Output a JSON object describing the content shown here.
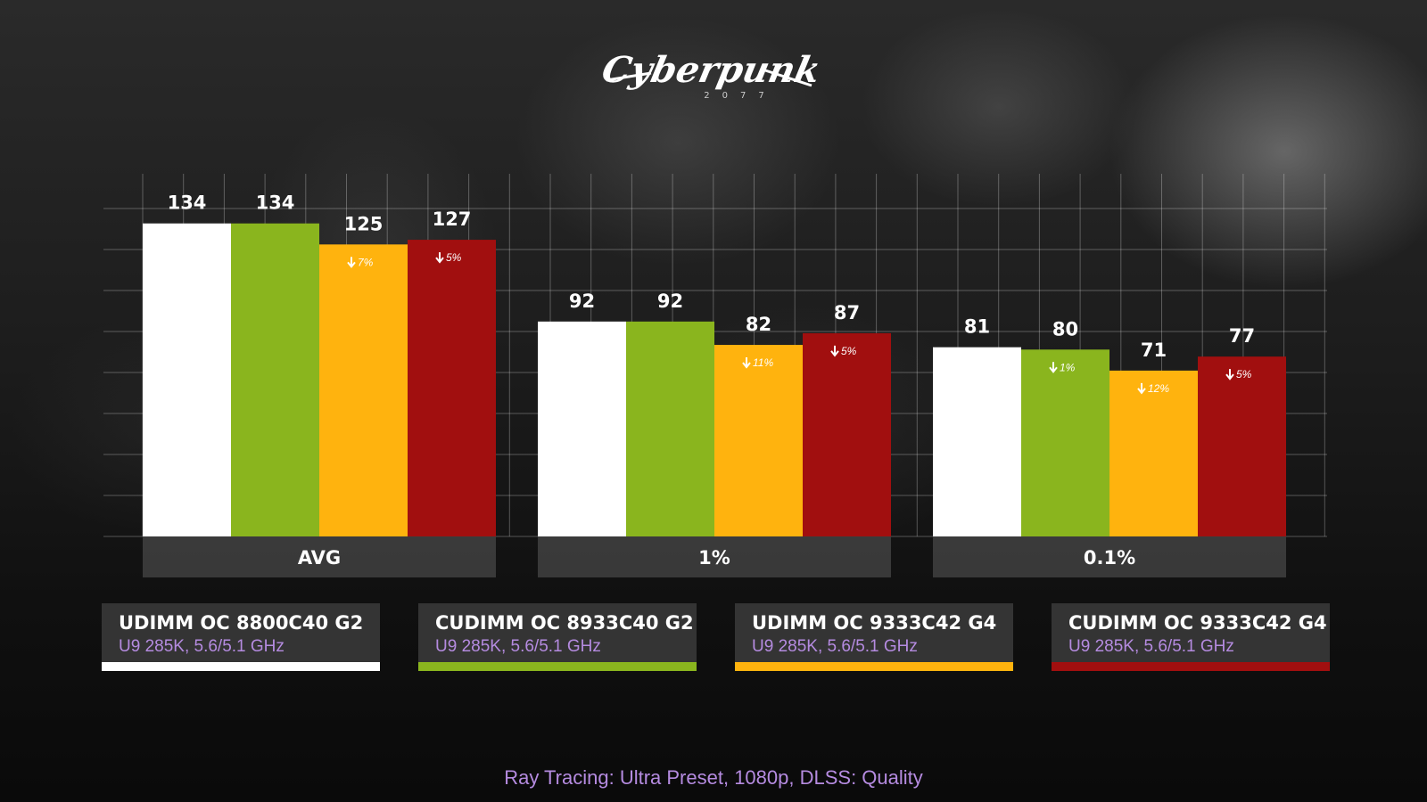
{
  "logo_text": "Cyberpunk 2077",
  "footnote": "Ray Tracing: Ultra Preset, 1080p, DLSS: Quality",
  "legend": [
    {
      "title": "UDIMM OC 8800C40 G2",
      "sub": "U9 285K, 5.6/5.1 GHz",
      "color": "#ffffff"
    },
    {
      "title": "CUDIMM OC 8933C40 G2",
      "sub": "U9 285K, 5.6/5.1 GHz",
      "color": "#8ab51e"
    },
    {
      "title": "UDIMM OC 9333C42 G4",
      "sub": "U9 285K, 5.6/5.1 GHz",
      "color": "#ffb30e"
    },
    {
      "title": "CUDIMM OC 9333C42 G4",
      "sub": "U9 285K, 5.6/5.1 GHz",
      "color": "#a10f0f"
    }
  ],
  "chart_data": {
    "type": "bar",
    "categories": [
      "AVG",
      "1%",
      "0.1%"
    ],
    "ylim": [
      0,
      140
    ],
    "grid": true,
    "series": [
      {
        "name": "UDIMM OC 8800C40 G2",
        "color": "#ffffff",
        "values": [
          134,
          92,
          81
        ],
        "deltas": [
          "",
          "",
          ""
        ]
      },
      {
        "name": "CUDIMM OC 8933C40 G2",
        "color": "#8ab51e",
        "values": [
          134,
          92,
          80
        ],
        "deltas": [
          "",
          "",
          "1%"
        ]
      },
      {
        "name": "UDIMM OC 9333C42 G4",
        "color": "#ffb30e",
        "values": [
          125,
          82,
          71
        ],
        "deltas": [
          "7%",
          "11%",
          "12%"
        ]
      },
      {
        "name": "CUDIMM OC 9333C42 G4",
        "color": "#a10f0f",
        "values": [
          127,
          87,
          77
        ],
        "deltas": [
          "5%",
          "5%",
          "5%"
        ]
      }
    ]
  }
}
